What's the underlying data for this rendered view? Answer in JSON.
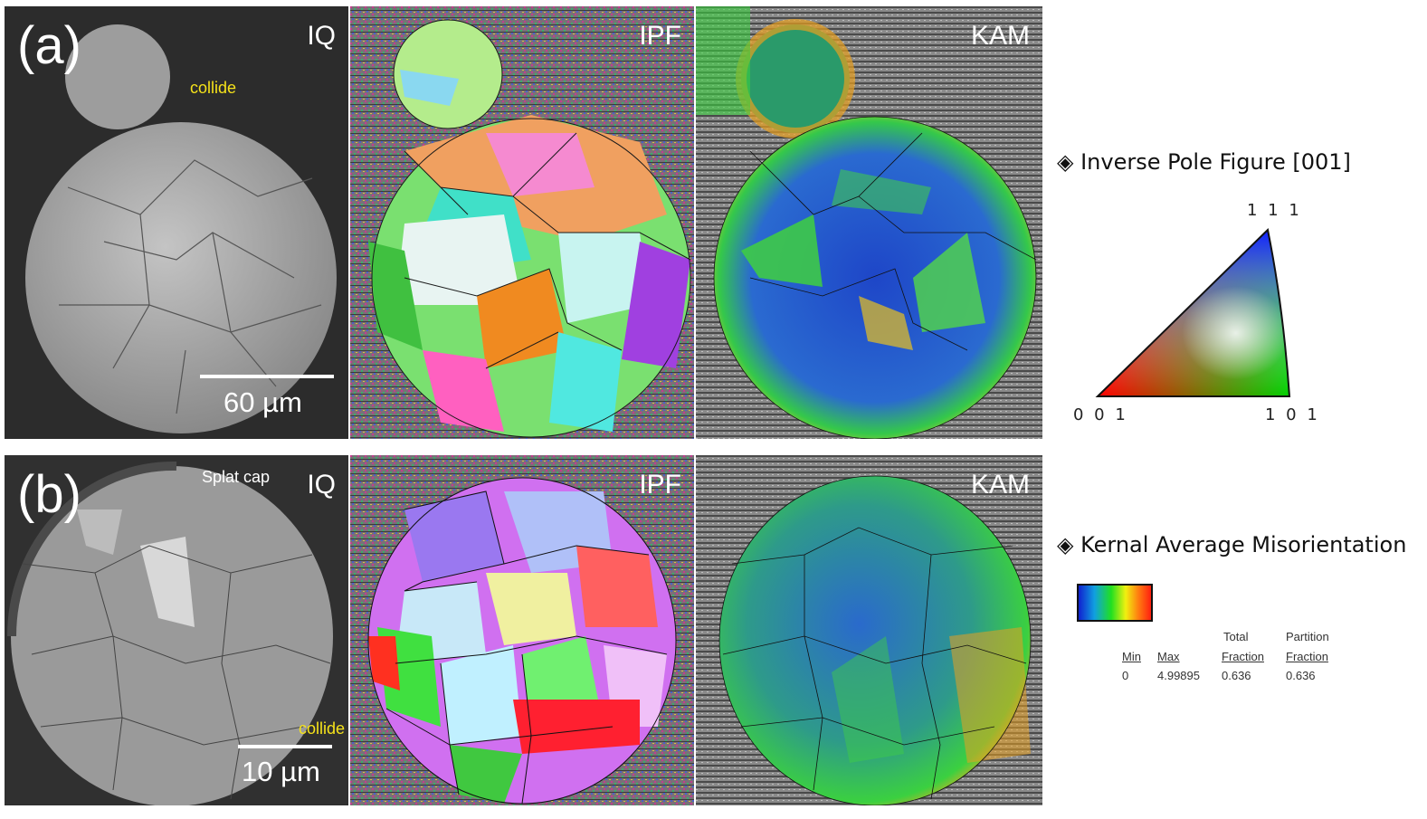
{
  "rows": [
    {
      "label": "(a)",
      "maps": {
        "iq": "IQ",
        "ipf": "IPF",
        "kam": "KAM"
      },
      "annotation": "collide",
      "scale_bar": "60 µm"
    },
    {
      "label": "(b)",
      "maps": {
        "iq": "IQ",
        "ipf": "IPF",
        "kam": "KAM"
      },
      "annotation_top": "Splat cap",
      "annotation": "collide",
      "scale_bar": "10 µm"
    }
  ],
  "legend": {
    "ipf": {
      "title": "◈ Inverse Pole Figure [001]",
      "corner_111": "1 1 1",
      "corner_001": "0 0 1",
      "corner_101": "1 0 1"
    },
    "kam": {
      "title": "◈ Kernal Average Misorientation",
      "headers": {
        "min": "Min",
        "max": "Max",
        "total_1": "Total",
        "total_2": "Fraction",
        "partition_1": "Partition",
        "partition_2": "Fraction"
      },
      "values": {
        "min": "0",
        "max": "4.99895",
        "total": "0.636",
        "partition": "0.636"
      }
    }
  },
  "colors": {
    "annotation": "#f5e21a",
    "iq_background": "#2b2b2b",
    "noise_background": "#6e6e6e",
    "kam_low": "#1b3fc4",
    "kam_mid": "#2fd13a",
    "kam_high": "#e83a18"
  }
}
